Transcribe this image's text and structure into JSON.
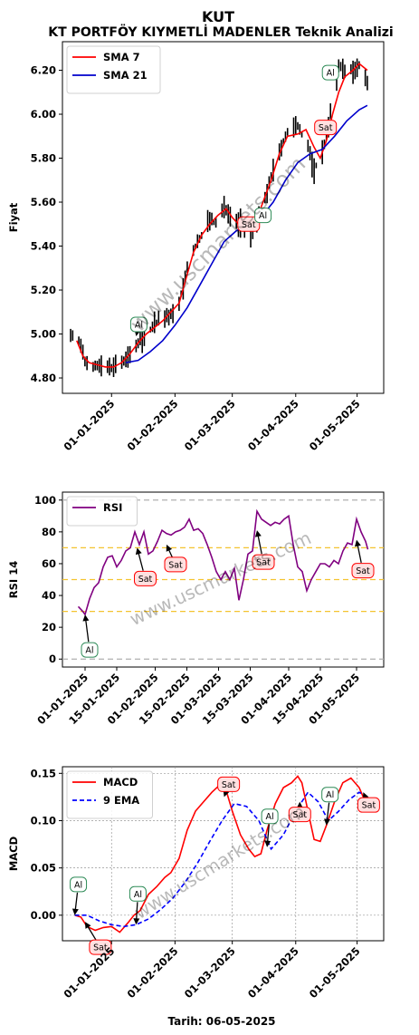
{
  "header": {
    "title": "KUT",
    "subtitle": "KT PORTFÖY KIYMETLİ MADENLER Teknik Analizi"
  },
  "footer": {
    "date_label": "Tarih: 06-05-2025"
  },
  "watermark": "www.uscmarkets.com",
  "colors": {
    "sma7": "#ff0000",
    "sma21": "#0000cc",
    "candle": "#000000",
    "rsi": "#800080",
    "rsi_levels": "#f4c430",
    "macd": "#ff0000",
    "ema9": "#0000ff",
    "buy_border": "#2e8b57",
    "buy_fill": "#ffffff",
    "sell_border": "#ff0000",
    "sell_fill": "#ffe0e0"
  },
  "chart_data": [
    {
      "type": "line",
      "name": "price",
      "ylabel": "Fiyat",
      "xlim": [
        "2024-12-08",
        "2025-05-14"
      ],
      "ylim": [
        4.73,
        6.33
      ],
      "yticks": [
        4.8,
        5.0,
        5.2,
        5.4,
        5.6,
        5.8,
        6.0,
        6.2
      ],
      "yticklabels": [
        "4.80",
        "5.00",
        "5.20",
        "5.40",
        "5.60",
        "5.80",
        "6.00",
        "6.20"
      ],
      "xticks": [
        "2025-01-01",
        "2025-02-01",
        "2025-03-01",
        "2025-04-01",
        "2025-05-01"
      ],
      "xticklabels": [
        "01-01-2025",
        "01-02-2025",
        "01-03-2025",
        "01-04-2025",
        "01-05-2025"
      ],
      "legend": {
        "position": "top-left",
        "entries": [
          "SMA 7",
          "SMA 21"
        ]
      },
      "price_anchors": [
        [
          "2024-12-12",
          5.0
        ],
        [
          "2024-12-16",
          4.97
        ],
        [
          "2024-12-19",
          4.88
        ],
        [
          "2024-12-23",
          4.85
        ],
        [
          "2024-12-27",
          4.86
        ],
        [
          "2025-01-01",
          4.85
        ],
        [
          "2025-01-06",
          4.87
        ],
        [
          "2025-01-10",
          4.9
        ],
        [
          "2025-01-15",
          4.98
        ],
        [
          "2025-01-20",
          5.02
        ],
        [
          "2025-01-24",
          5.06
        ],
        [
          "2025-01-29",
          5.08
        ],
        [
          "2025-02-03",
          5.14
        ],
        [
          "2025-02-07",
          5.3
        ],
        [
          "2025-02-11",
          5.4
        ],
        [
          "2025-02-14",
          5.45
        ],
        [
          "2025-02-18",
          5.52
        ],
        [
          "2025-02-21",
          5.5
        ],
        [
          "2025-02-25",
          5.58
        ],
        [
          "2025-03-01",
          5.52
        ],
        [
          "2025-03-05",
          5.5
        ],
        [
          "2025-03-10",
          5.45
        ],
        [
          "2025-03-14",
          5.55
        ],
        [
          "2025-03-18",
          5.65
        ],
        [
          "2025-03-21",
          5.75
        ],
        [
          "2025-03-25",
          5.85
        ],
        [
          "2025-03-28",
          5.92
        ],
        [
          "2025-04-02",
          5.95
        ],
        [
          "2025-04-07",
          5.85
        ],
        [
          "2025-04-10",
          5.75
        ],
        [
          "2025-04-14",
          5.82
        ],
        [
          "2025-04-17",
          5.95
        ],
        [
          "2025-04-22",
          6.22
        ],
        [
          "2025-04-25",
          6.2
        ],
        [
          "2025-04-29",
          6.2
        ],
        [
          "2025-05-02",
          6.22
        ],
        [
          "2025-05-06",
          6.15
        ]
      ],
      "sma7": [
        [
          "2024-12-15",
          4.97
        ],
        [
          "2024-12-18",
          4.9
        ],
        [
          "2024-12-21",
          4.87
        ],
        [
          "2024-12-25",
          4.86
        ],
        [
          "2024-12-29",
          4.85
        ],
        [
          "2025-01-02",
          4.85
        ],
        [
          "2025-01-06",
          4.87
        ],
        [
          "2025-01-10",
          4.91
        ],
        [
          "2025-01-14",
          4.96
        ],
        [
          "2025-01-18",
          5.0
        ],
        [
          "2025-01-22",
          5.03
        ],
        [
          "2025-01-26",
          5.06
        ],
        [
          "2025-01-30",
          5.1
        ],
        [
          "2025-02-03",
          5.14
        ],
        [
          "2025-02-06",
          5.24
        ],
        [
          "2025-02-10",
          5.37
        ],
        [
          "2025-02-14",
          5.45
        ],
        [
          "2025-02-18",
          5.5
        ],
        [
          "2025-02-22",
          5.54
        ],
        [
          "2025-02-26",
          5.57
        ],
        [
          "2025-03-01",
          5.53
        ],
        [
          "2025-03-04",
          5.5
        ],
        [
          "2025-03-08",
          5.49
        ],
        [
          "2025-03-12",
          5.5
        ],
        [
          "2025-03-16",
          5.6
        ],
        [
          "2025-03-20",
          5.7
        ],
        [
          "2025-03-24",
          5.82
        ],
        [
          "2025-03-28",
          5.9
        ],
        [
          "2025-04-02",
          5.91
        ],
        [
          "2025-04-06",
          5.93
        ],
        [
          "2025-04-10",
          5.85
        ],
        [
          "2025-04-13",
          5.8
        ],
        [
          "2025-04-16",
          5.88
        ],
        [
          "2025-04-19",
          6.0
        ],
        [
          "2025-04-22",
          6.1
        ],
        [
          "2025-04-25",
          6.17
        ],
        [
          "2025-04-29",
          6.2
        ],
        [
          "2025-05-02",
          6.23
        ],
        [
          "2025-05-06",
          6.2
        ]
      ],
      "sma21": [
        [
          "2025-01-08",
          4.87
        ],
        [
          "2025-01-14",
          4.88
        ],
        [
          "2025-01-20",
          4.92
        ],
        [
          "2025-01-26",
          4.97
        ],
        [
          "2025-02-01",
          5.04
        ],
        [
          "2025-02-07",
          5.12
        ],
        [
          "2025-02-13",
          5.22
        ],
        [
          "2025-02-19",
          5.32
        ],
        [
          "2025-02-25",
          5.42
        ],
        [
          "2025-03-03",
          5.47
        ],
        [
          "2025-03-09",
          5.5
        ],
        [
          "2025-03-15",
          5.53
        ],
        [
          "2025-03-21",
          5.6
        ],
        [
          "2025-03-27",
          5.7
        ],
        [
          "2025-04-02",
          5.78
        ],
        [
          "2025-04-08",
          5.82
        ],
        [
          "2025-04-14",
          5.84
        ],
        [
          "2025-04-20",
          5.9
        ],
        [
          "2025-04-26",
          5.97
        ],
        [
          "2025-05-02",
          6.02
        ],
        [
          "2025-05-06",
          6.04
        ]
      ],
      "signals": [
        {
          "label": "Al",
          "kind": "buy",
          "date": "2025-01-13",
          "value": 4.99
        },
        {
          "label": "Sat",
          "kind": "sell",
          "date": "2025-03-09",
          "value": 5.5
        },
        {
          "label": "Al",
          "kind": "buy",
          "date": "2025-03-16",
          "value": 5.54
        },
        {
          "label": "Sat",
          "kind": "sell",
          "date": "2025-04-16",
          "value": 5.94
        },
        {
          "label": "Al",
          "kind": "buy",
          "date": "2025-04-18",
          "value": 6.14
        }
      ]
    },
    {
      "type": "line",
      "name": "rsi",
      "ylabel": "RSI 14",
      "xlim": [
        "2024-12-22",
        "2025-05-13"
      ],
      "ylim": [
        -5,
        105
      ],
      "yticks": [
        0,
        20,
        40,
        60,
        80,
        100
      ],
      "yticklabels": [
        "0",
        "20",
        "40",
        "60",
        "80",
        "100"
      ],
      "reference_lines": [
        0,
        30,
        50,
        70,
        100
      ],
      "xticks": [
        "2025-01-01",
        "2025-01-15",
        "2025-02-01",
        "2025-02-15",
        "2025-03-01",
        "2025-03-15",
        "2025-04-01",
        "2025-04-15",
        "2025-05-01"
      ],
      "xticklabels": [
        "01-01-2025",
        "15-01-2025",
        "01-02-2025",
        "15-02-2025",
        "01-03-2025",
        "15-03-2025",
        "01-04-2025",
        "15-04-2025",
        "01-05-2025"
      ],
      "legend": {
        "position": "top-left",
        "entries": [
          "RSI"
        ]
      },
      "series": [
        [
          "2024-12-29",
          33
        ],
        [
          "2024-12-31",
          30
        ],
        [
          "2025-01-01",
          28
        ],
        [
          "2025-01-03",
          38
        ],
        [
          "2025-01-05",
          45
        ],
        [
          "2025-01-07",
          48
        ],
        [
          "2025-01-09",
          58
        ],
        [
          "2025-01-11",
          64
        ],
        [
          "2025-01-13",
          65
        ],
        [
          "2025-01-15",
          58
        ],
        [
          "2025-01-17",
          62
        ],
        [
          "2025-01-19",
          68
        ],
        [
          "2025-01-21",
          70
        ],
        [
          "2025-01-23",
          80
        ],
        [
          "2025-01-25",
          72
        ],
        [
          "2025-01-27",
          80
        ],
        [
          "2025-01-29",
          66
        ],
        [
          "2025-01-31",
          68
        ],
        [
          "2025-02-02",
          74
        ],
        [
          "2025-02-04",
          81
        ],
        [
          "2025-02-06",
          79
        ],
        [
          "2025-02-08",
          78
        ],
        [
          "2025-02-10",
          80
        ],
        [
          "2025-02-12",
          81
        ],
        [
          "2025-02-14",
          83
        ],
        [
          "2025-02-16",
          88
        ],
        [
          "2025-02-18",
          81
        ],
        [
          "2025-02-20",
          82
        ],
        [
          "2025-02-22",
          79
        ],
        [
          "2025-02-24",
          72
        ],
        [
          "2025-02-26",
          64
        ],
        [
          "2025-02-28",
          55
        ],
        [
          "2025-03-02",
          50
        ],
        [
          "2025-03-04",
          55
        ],
        [
          "2025-03-06",
          50
        ],
        [
          "2025-03-08",
          57
        ],
        [
          "2025-03-10",
          37
        ],
        [
          "2025-03-12",
          50
        ],
        [
          "2025-03-14",
          66
        ],
        [
          "2025-03-16",
          68
        ],
        [
          "2025-03-18",
          93
        ],
        [
          "2025-03-20",
          88
        ],
        [
          "2025-03-22",
          86
        ],
        [
          "2025-03-24",
          84
        ],
        [
          "2025-03-26",
          86
        ],
        [
          "2025-03-28",
          85
        ],
        [
          "2025-03-30",
          88
        ],
        [
          "2025-04-01",
          90
        ],
        [
          "2025-04-03",
          72
        ],
        [
          "2025-04-05",
          58
        ],
        [
          "2025-04-07",
          55
        ],
        [
          "2025-04-09",
          43
        ],
        [
          "2025-04-11",
          50
        ],
        [
          "2025-04-13",
          55
        ],
        [
          "2025-04-15",
          60
        ],
        [
          "2025-04-17",
          60
        ],
        [
          "2025-04-19",
          58
        ],
        [
          "2025-04-21",
          62
        ],
        [
          "2025-04-23",
          60
        ],
        [
          "2025-04-25",
          68
        ],
        [
          "2025-04-27",
          73
        ],
        [
          "2025-04-29",
          72
        ],
        [
          "2025-05-01",
          88
        ],
        [
          "2025-05-03",
          80
        ],
        [
          "2025-05-05",
          74
        ],
        [
          "2025-05-06",
          69
        ]
      ],
      "signals": [
        {
          "label": "Al",
          "kind": "buy",
          "date": "2025-01-01",
          "value": 28
        },
        {
          "label": "Sat",
          "kind": "sell",
          "date": "2025-01-24",
          "value": 70
        },
        {
          "label": "Sat",
          "kind": "sell",
          "date": "2025-02-06",
          "value": 72
        },
        {
          "label": "Sat",
          "kind": "sell",
          "date": "2025-03-18",
          "value": 81
        },
        {
          "label": "Sat",
          "kind": "sell",
          "date": "2025-05-01",
          "value": 75
        }
      ]
    },
    {
      "type": "line",
      "name": "macd",
      "ylabel": "MACD",
      "xlabel": "Tarih: 06-05-2025",
      "xlim": [
        "2024-12-08",
        "2025-05-14"
      ],
      "ylim": [
        -0.027,
        0.157
      ],
      "yticks": [
        0.0,
        0.05,
        0.1,
        0.15
      ],
      "yticklabels": [
        "0.00",
        "0.05",
        "0.10",
        "0.15"
      ],
      "grid": true,
      "xticks": [
        "2025-01-01",
        "2025-02-01",
        "2025-03-01",
        "2025-04-01",
        "2025-05-01"
      ],
      "xticklabels": [
        "01-01-2025",
        "01-02-2025",
        "01-03-2025",
        "01-04-2025",
        "01-05-2025"
      ],
      "legend": {
        "position": "top-left",
        "entries": [
          "MACD",
          "9 EMA"
        ]
      },
      "macd": [
        [
          "2024-12-14",
          0.0
        ],
        [
          "2024-12-17",
          -0.002
        ],
        [
          "2024-12-20",
          -0.012
        ],
        [
          "2024-12-24",
          -0.016
        ],
        [
          "2024-12-28",
          -0.013
        ],
        [
          "2025-01-01",
          -0.012
        ],
        [
          "2025-01-05",
          -0.018
        ],
        [
          "2025-01-09",
          -0.008
        ],
        [
          "2025-01-12",
          0.0
        ],
        [
          "2025-01-15",
          0.005
        ],
        [
          "2025-01-19",
          0.022
        ],
        [
          "2025-01-23",
          0.03
        ],
        [
          "2025-01-27",
          0.04
        ],
        [
          "2025-01-30",
          0.045
        ],
        [
          "2025-02-03",
          0.06
        ],
        [
          "2025-02-07",
          0.09
        ],
        [
          "2025-02-11",
          0.11
        ],
        [
          "2025-02-15",
          0.12
        ],
        [
          "2025-02-19",
          0.13
        ],
        [
          "2025-02-23",
          0.138
        ],
        [
          "2025-02-26",
          0.132
        ],
        [
          "2025-03-01",
          0.11
        ],
        [
          "2025-03-05",
          0.085
        ],
        [
          "2025-03-09",
          0.07
        ],
        [
          "2025-03-12",
          0.062
        ],
        [
          "2025-03-15",
          0.065
        ],
        [
          "2025-03-18",
          0.09
        ],
        [
          "2025-03-22",
          0.118
        ],
        [
          "2025-03-26",
          0.135
        ],
        [
          "2025-03-30",
          0.14
        ],
        [
          "2025-04-02",
          0.147
        ],
        [
          "2025-04-04",
          0.14
        ],
        [
          "2025-04-07",
          0.11
        ],
        [
          "2025-04-10",
          0.08
        ],
        [
          "2025-04-13",
          0.078
        ],
        [
          "2025-04-16",
          0.095
        ],
        [
          "2025-04-20",
          0.12
        ],
        [
          "2025-04-24",
          0.14
        ],
        [
          "2025-04-28",
          0.145
        ],
        [
          "2025-05-02",
          0.135
        ],
        [
          "2025-05-06",
          0.115
        ]
      ],
      "ema9": [
        [
          "2024-12-14",
          0.0
        ],
        [
          "2024-12-20",
          0.0
        ],
        [
          "2024-12-26",
          -0.006
        ],
        [
          "2025-01-01",
          -0.01
        ],
        [
          "2025-01-07",
          -0.012
        ],
        [
          "2025-01-13",
          -0.01
        ],
        [
          "2025-01-19",
          -0.004
        ],
        [
          "2025-01-25",
          0.006
        ],
        [
          "2025-01-31",
          0.018
        ],
        [
          "2025-02-06",
          0.035
        ],
        [
          "2025-02-12",
          0.055
        ],
        [
          "2025-02-18",
          0.078
        ],
        [
          "2025-02-24",
          0.1
        ],
        [
          "2025-03-02",
          0.118
        ],
        [
          "2025-03-08",
          0.115
        ],
        [
          "2025-03-14",
          0.1
        ],
        [
          "2025-03-20",
          0.07
        ],
        [
          "2025-03-26",
          0.085
        ],
        [
          "2025-04-01",
          0.11
        ],
        [
          "2025-04-07",
          0.13
        ],
        [
          "2025-04-12",
          0.12
        ],
        [
          "2025-04-17",
          0.1
        ],
        [
          "2025-04-22",
          0.11
        ],
        [
          "2025-04-27",
          0.122
        ],
        [
          "2025-05-02",
          0.13
        ],
        [
          "2025-05-06",
          0.125
        ]
      ],
      "signals": [
        {
          "label": "Al",
          "kind": "buy",
          "date": "2024-12-14",
          "value": 0.0
        },
        {
          "label": "Sat",
          "kind": "sell",
          "date": "2024-12-19",
          "value": -0.007
        },
        {
          "label": "Al",
          "kind": "buy",
          "date": "2025-01-13",
          "value": -0.01
        },
        {
          "label": "Sat",
          "kind": "sell",
          "date": "2025-02-25",
          "value": 0.125
        },
        {
          "label": "Al",
          "kind": "buy",
          "date": "2025-03-18",
          "value": 0.072
        },
        {
          "label": "Sat",
          "kind": "sell",
          "date": "2025-04-03",
          "value": 0.12
        },
        {
          "label": "Al",
          "kind": "buy",
          "date": "2025-04-16",
          "value": 0.095
        },
        {
          "label": "Sat",
          "kind": "sell",
          "date": "2025-05-04",
          "value": 0.13
        }
      ]
    }
  ]
}
